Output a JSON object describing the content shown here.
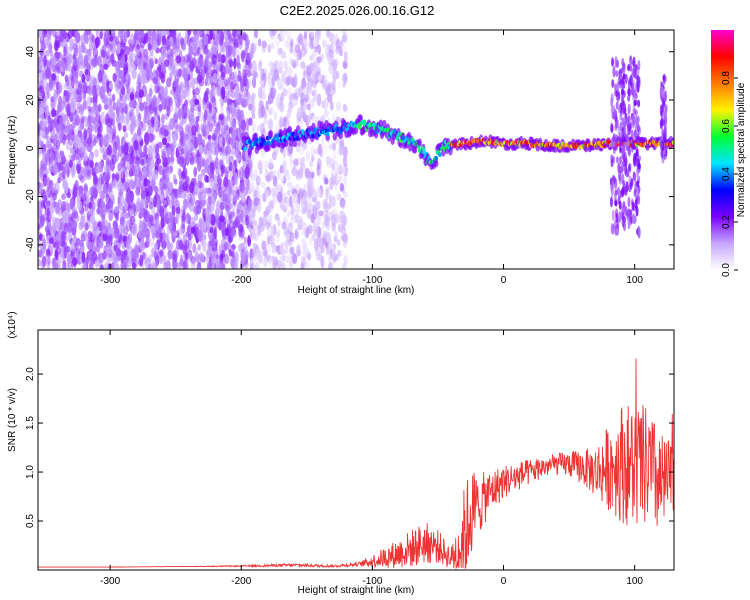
{
  "figure_title": "C2E2.2025.026.00.16.G12",
  "chart_data": [
    {
      "type": "heatmap",
      "xlabel": "Height of straight line (km)",
      "ylabel": "Frequency (Hz)",
      "xlim": [
        -355,
        130
      ],
      "ylim": [
        -50,
        49
      ],
      "x_ticks": [
        -300,
        -200,
        -100,
        0,
        100
      ],
      "y_ticks": [
        -40,
        -20,
        0,
        20,
        40
      ],
      "colorbar": {
        "label": "Normalized spectral amplitude",
        "range": [
          0,
          1
        ],
        "ticks": [
          0.0,
          0.2,
          0.4,
          0.6,
          0.8
        ],
        "colors": [
          "#ffffff",
          "#c7a6ff",
          "#7a00ff",
          "#0000ff",
          "#00e6ff",
          "#00ff33",
          "#fff200",
          "#ff7a00",
          "#ff0000",
          "#ff00cc"
        ]
      },
      "regions": [
        {
          "x_start": -355,
          "x_end": -192,
          "y_min": -50,
          "y_max": 49,
          "amplitude": 0.15,
          "density": 0.85
        },
        {
          "x_start": -192,
          "x_end": -120,
          "y_min": -50,
          "y_max": 49,
          "amplitude": 0.08,
          "density": 0.5
        }
      ],
      "ridge": [
        {
          "x": -198,
          "y": 1
        },
        {
          "x": -180,
          "y": 3
        },
        {
          "x": -160,
          "y": 5
        },
        {
          "x": -140,
          "y": 7
        },
        {
          "x": -125,
          "y": 8
        },
        {
          "x": -110,
          "y": 10
        },
        {
          "x": -95,
          "y": 8
        },
        {
          "x": -80,
          "y": 5
        },
        {
          "x": -65,
          "y": 1
        },
        {
          "x": -55,
          "y": -6
        },
        {
          "x": -45,
          "y": 1
        },
        {
          "x": -30,
          "y": 2
        },
        {
          "x": -15,
          "y": 3
        },
        {
          "x": 0,
          "y": 2
        },
        {
          "x": 20,
          "y": 2
        },
        {
          "x": 40,
          "y": 1
        },
        {
          "x": 60,
          "y": 1
        },
        {
          "x": 80,
          "y": 2
        },
        {
          "x": 100,
          "y": 2
        },
        {
          "x": 130,
          "y": 2
        }
      ],
      "bursts": [
        {
          "x_start": 82,
          "x_end": 104,
          "y_min": -35,
          "y_max": 37
        },
        {
          "x_start": 120,
          "x_end": 124,
          "y_min": -5,
          "y_max": 30
        }
      ]
    },
    {
      "type": "line",
      "xlabel": "Height of straight line (km)",
      "ylabel": "SNR (10 * v/v)",
      "scale_label": "(x10⁴)",
      "xlim": [
        -355,
        130
      ],
      "ylim": [
        0,
        2.45
      ],
      "x_ticks": [
        -300,
        -200,
        -100,
        0,
        100
      ],
      "y_ticks": [
        0.5,
        1.0,
        1.5,
        2.0
      ],
      "line_color": "#ee3333",
      "series": [
        {
          "x": [
            -355,
            -300,
            -250,
            -200,
            -160,
            -130,
            -110,
            -100,
            -90,
            -80,
            -70,
            -60,
            -50,
            -40,
            -30,
            -25,
            -20,
            -10,
            0,
            10,
            20,
            30,
            40,
            50,
            60,
            70,
            80,
            90,
            100,
            110,
            120,
            130
          ],
          "values": [
            0.03,
            0.03,
            0.035,
            0.04,
            0.05,
            0.04,
            0.06,
            0.09,
            0.13,
            0.17,
            0.22,
            0.28,
            0.24,
            0.12,
            0.3,
            0.6,
            0.65,
            0.8,
            0.9,
            0.95,
            1.0,
            1.05,
            1.08,
            1.08,
            1.05,
            1.0,
            1.05,
            1.1,
            1.05,
            1.05,
            0.85,
            0.95
          ],
          "noise": [
            0,
            0,
            0,
            0.003,
            0.008,
            0.006,
            0.01,
            0.03,
            0.05,
            0.07,
            0.09,
            0.1,
            0.08,
            0.05,
            0.25,
            0.22,
            0.15,
            0.1,
            0.08,
            0.07,
            0.06,
            0.05,
            0.05,
            0.06,
            0.08,
            0.12,
            0.2,
            0.28,
            0.3,
            0.28,
            0.25,
            0.15
          ]
        }
      ]
    }
  ]
}
